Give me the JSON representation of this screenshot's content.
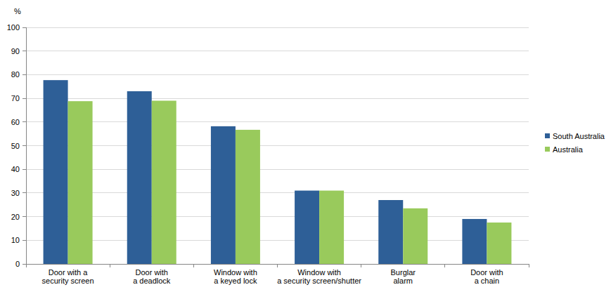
{
  "chart_data": {
    "type": "bar",
    "y_label": "%",
    "categories": [
      "Door with a\nsecurity screen",
      "Door with\na deadlock",
      "Window with\na keyed lock",
      "Window with\na security screen/shutter",
      "Burglar\nalarm",
      "Door with\na chain"
    ],
    "series": [
      {
        "name": "South Australia",
        "color": "#2e5f97",
        "values": [
          77.7,
          73,
          58.2,
          31,
          27,
          19
        ]
      },
      {
        "name": "Australia",
        "color": "#99ca5c",
        "values": [
          68.8,
          69,
          56.7,
          31,
          23.5,
          17.5
        ]
      }
    ],
    "ylim": [
      0,
      100
    ],
    "yticks": [
      0,
      10,
      20,
      30,
      40,
      50,
      60,
      70,
      80,
      90,
      100
    ],
    "grid": true,
    "legend": "right"
  }
}
